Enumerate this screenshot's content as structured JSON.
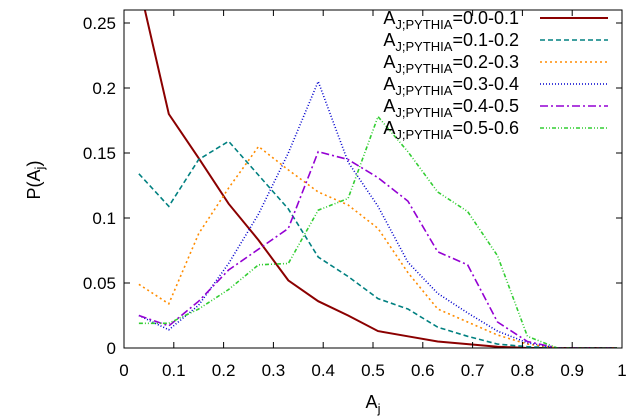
{
  "chart_data": {
    "type": "line",
    "xlabel": {
      "main": "A",
      "sub": "j"
    },
    "ylabel": {
      "main": "P(A",
      "sub": "j",
      "tail": ")"
    },
    "xlim": [
      0,
      1
    ],
    "ylim": [
      0,
      0.26
    ],
    "xticks": [
      0,
      0.1,
      0.2,
      0.3,
      0.4,
      0.5,
      0.6,
      0.7,
      0.8,
      0.9,
      1
    ],
    "xtick_labels": [
      "0",
      "0.1",
      "0.2",
      "0.3",
      "0.4",
      "0.5",
      "0.6",
      "0.7",
      "0.8",
      "0.9",
      "1"
    ],
    "yticks": [
      0,
      0.05,
      0.1,
      0.15,
      0.2,
      0.25
    ],
    "ytick_labels": [
      "0",
      "0.05",
      "0.1",
      "0.15",
      "0.2",
      "0.25"
    ],
    "legend_position": "top-right",
    "grid": false,
    "series": [
      {
        "name": "A_{J;PYTHIA}=0.0-0.1",
        "label_main": "A",
        "label_sub": "J;PYTHIA",
        "label_tail": "=0.0-0.1",
        "color": "#8b0000",
        "dash": "",
        "x": [
          0.03,
          0.09,
          0.15,
          0.21,
          0.27,
          0.33,
          0.39,
          0.45,
          0.51,
          0.57,
          0.63,
          0.69,
          0.75,
          0.81,
          0.87,
          0.93,
          0.99
        ],
        "y": [
          0.28,
          0.18,
          0.146,
          0.111,
          0.083,
          0.052,
          0.036,
          0.025,
          0.013,
          0.009,
          0.005,
          0.003,
          0.001,
          0.0,
          0.0,
          0.0,
          0.0
        ]
      },
      {
        "name": "A_{J;PYTHIA}=0.1-0.2",
        "label_main": "A",
        "label_sub": "J;PYTHIA",
        "label_tail": "=0.1-0.2",
        "color": "#008080",
        "dash": "5,3",
        "x": [
          0.03,
          0.09,
          0.15,
          0.21,
          0.27,
          0.33,
          0.39,
          0.45,
          0.51,
          0.57,
          0.63,
          0.69,
          0.75,
          0.81,
          0.87,
          0.93,
          0.99
        ],
        "y": [
          0.134,
          0.109,
          0.145,
          0.159,
          0.133,
          0.107,
          0.07,
          0.055,
          0.038,
          0.03,
          0.016,
          0.009,
          0.003,
          0.001,
          0.0,
          0.0,
          0.0
        ]
      },
      {
        "name": "A_{J;PYTHIA}=0.2-0.3",
        "label_main": "A",
        "label_sub": "J;PYTHIA",
        "label_tail": "=0.2-0.3",
        "color": "#ff8c00",
        "dash": "2,3",
        "x": [
          0.03,
          0.09,
          0.15,
          0.21,
          0.27,
          0.33,
          0.39,
          0.45,
          0.51,
          0.57,
          0.63,
          0.69,
          0.75,
          0.81,
          0.87,
          0.93,
          0.99
        ],
        "y": [
          0.049,
          0.034,
          0.088,
          0.123,
          0.155,
          0.137,
          0.12,
          0.11,
          0.092,
          0.058,
          0.03,
          0.02,
          0.01,
          0.003,
          0.0,
          0.0,
          0.0
        ]
      },
      {
        "name": "A_{J;PYTHIA}=0.3-0.4",
        "label_main": "A",
        "label_sub": "J;PYTHIA",
        "label_tail": "=0.3-0.4",
        "color": "#0000cd",
        "dash": "1,2",
        "x": [
          0.03,
          0.09,
          0.15,
          0.21,
          0.27,
          0.33,
          0.39,
          0.45,
          0.51,
          0.57,
          0.63,
          0.69,
          0.75,
          0.81,
          0.87,
          0.93,
          0.99
        ],
        "y": [
          0.025,
          0.014,
          0.033,
          0.065,
          0.103,
          0.15,
          0.205,
          0.143,
          0.109,
          0.066,
          0.042,
          0.027,
          0.013,
          0.004,
          0.0,
          0.0,
          0.0
        ]
      },
      {
        "name": "A_{J;PYTHIA}=0.4-0.5",
        "label_main": "A",
        "label_sub": "J;PYTHIA",
        "label_tail": "=0.4-0.5",
        "color": "#9400d3",
        "dash": "8,3,2,3",
        "x": [
          0.03,
          0.09,
          0.15,
          0.21,
          0.27,
          0.33,
          0.39,
          0.45,
          0.51,
          0.57,
          0.63,
          0.69,
          0.75,
          0.81,
          0.87,
          0.93,
          0.99
        ],
        "y": [
          0.025,
          0.017,
          0.036,
          0.06,
          0.076,
          0.092,
          0.151,
          0.145,
          0.131,
          0.113,
          0.074,
          0.064,
          0.02,
          0.005,
          0.0,
          0.0,
          0.0
        ]
      },
      {
        "name": "A_{J;PYTHIA}=0.5-0.6",
        "label_main": "A",
        "label_sub": "J;PYTHIA",
        "label_tail": "=0.5-0.6",
        "color": "#32cd32",
        "dash": "4,2,1,2,1,2",
        "x": [
          0.03,
          0.09,
          0.15,
          0.21,
          0.27,
          0.33,
          0.39,
          0.45,
          0.51,
          0.57,
          0.63,
          0.69,
          0.75,
          0.81,
          0.87,
          0.93,
          0.99
        ],
        "y": [
          0.019,
          0.019,
          0.03,
          0.045,
          0.064,
          0.065,
          0.106,
          0.115,
          0.178,
          0.151,
          0.12,
          0.105,
          0.071,
          0.009,
          0.0,
          0.0,
          0.0
        ]
      }
    ]
  }
}
